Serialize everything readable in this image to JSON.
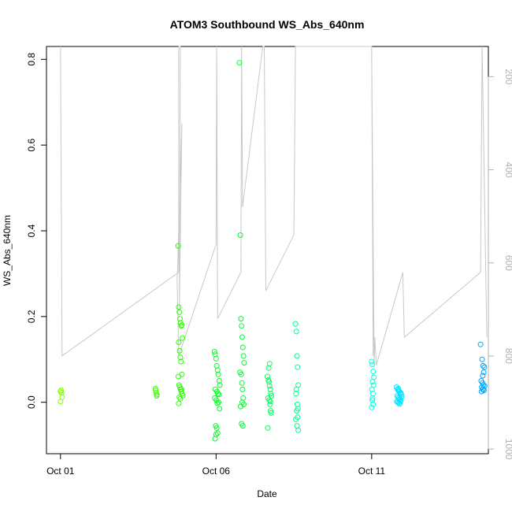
{
  "chart_data": {
    "type": "scatter",
    "title": "ATOM3 Southbound WS_Abs_640nm",
    "xlabel": "Date",
    "ylabel": "WS_Abs_640nm",
    "x_unit": "days since Oct 01",
    "xlim": [
      -0.45,
      13.75
    ],
    "ylim": [
      -0.12,
      0.83
    ],
    "x_ticks": [
      {
        "value": 0,
        "label": "Oct 01"
      },
      {
        "value": 5,
        "label": "Oct 06"
      },
      {
        "value": 10,
        "label": "Oct 11"
      }
    ],
    "y_ticks": [
      0.0,
      0.2,
      0.4,
      0.6,
      0.8
    ],
    "y_tick_labels": [
      "0.0",
      "0.2",
      "0.4",
      "0.6",
      "0.8"
    ],
    "y2_axis": {
      "lim": [
        1010,
        135
      ],
      "ticks": [
        200,
        400,
        600,
        800,
        1000
      ],
      "tick_labels": [
        "200",
        "400",
        "600",
        "800",
        "1000"
      ],
      "color": "#b0b0b0"
    },
    "point_clusters": [
      {
        "color": "#80ff00",
        "x": [
          0.0,
          0.02,
          0.05,
          0.0,
          0.03
        ],
        "y": [
          0.025,
          0.028,
          0.012,
          0.002,
          0.022
        ]
      },
      {
        "color": "#40ff00",
        "x": [
          3.05,
          3.07,
          3.09,
          3.1,
          3.06
        ],
        "y": [
          0.032,
          0.022,
          0.015,
          0.018,
          0.028
        ]
      },
      {
        "color": "#2aff00",
        "x": [
          3.78,
          3.8,
          3.82,
          3.84,
          3.86,
          3.88,
          3.9,
          3.92,
          3.8,
          3.83,
          3.85,
          3.87,
          3.9,
          3.79,
          3.81,
          3.84,
          3.86,
          3.88,
          3.91,
          3.93,
          3.82,
          3.85,
          3.89,
          3.8
        ],
        "y": [
          0.365,
          0.222,
          0.21,
          0.195,
          0.185,
          0.178,
          0.18,
          0.15,
          0.14,
          0.12,
          0.105,
          0.095,
          0.065,
          0.06,
          0.04,
          0.035,
          0.03,
          0.025,
          0.02,
          0.015,
          0.012,
          0.008,
          0.03,
          -0.003
        ]
      },
      {
        "color": "#00ff20",
        "x": [
          4.95,
          4.97,
          5.0,
          5.02,
          5.05,
          5.07,
          5.1,
          5.12,
          4.98,
          5.03,
          5.06,
          5.09,
          4.96,
          5.01,
          5.04,
          5.08,
          5.11,
          4.99,
          5.02,
          5.05,
          5.0,
          4.97
        ],
        "y": [
          0.118,
          0.112,
          0.102,
          0.085,
          0.075,
          0.065,
          0.05,
          0.04,
          0.03,
          0.025,
          0.02,
          0.018,
          0.01,
          0.005,
          -0.002,
          0.0,
          -0.015,
          -0.055,
          -0.06,
          -0.072,
          -0.075,
          -0.085
        ]
      },
      {
        "color": "#00ff30",
        "x": [
          5.75,
          5.78,
          5.8,
          5.82,
          5.84,
          5.86,
          5.88,
          5.9,
          5.77,
          5.81,
          5.83,
          5.85,
          5.87,
          5.89,
          5.79,
          5.82,
          5.86,
          5.84
        ],
        "y": [
          0.792,
          0.39,
          0.195,
          0.178,
          0.152,
          0.128,
          0.108,
          0.092,
          0.07,
          0.065,
          0.045,
          0.03,
          0.01,
          -0.005,
          -0.01,
          -0.05,
          -0.055,
          0.0
        ]
      },
      {
        "color": "#00ff60",
        "x": [
          6.65,
          6.68,
          6.7,
          6.72,
          6.74,
          6.76,
          6.78,
          6.67,
          6.71,
          6.73,
          6.75,
          6.77,
          6.69,
          6.72,
          6.74,
          6.66
        ],
        "y": [
          0.06,
          0.052,
          0.048,
          0.038,
          0.03,
          0.02,
          0.015,
          0.01,
          0.005,
          -0.005,
          -0.02,
          -0.025,
          0.08,
          0.09,
          0.002,
          -0.06
        ]
      },
      {
        "color": "#00ff90",
        "x": [
          7.55,
          7.58,
          7.6,
          7.62,
          7.64,
          7.57,
          7.61,
          7.63,
          7.59,
          7.62,
          7.56,
          7.6,
          7.64,
          7.58
        ],
        "y": [
          0.183,
          0.165,
          0.108,
          0.082,
          0.04,
          0.02,
          -0.005,
          -0.015,
          -0.02,
          -0.035,
          -0.04,
          -0.055,
          -0.065,
          0.03
        ]
      },
      {
        "color": "#00ffe0",
        "x": [
          10.0,
          10.02,
          10.05,
          10.07,
          10.03,
          10.06,
          10.01,
          10.04,
          10.02,
          10.05,
          10.0,
          10.03
        ],
        "y": [
          0.095,
          0.088,
          0.072,
          0.058,
          0.048,
          0.04,
          0.03,
          0.02,
          0.005,
          -0.005,
          -0.012,
          0.01
        ]
      },
      {
        "color": "#00e5ff",
        "x": [
          10.8,
          10.83,
          10.86,
          10.89,
          10.92,
          10.95,
          10.82,
          10.85,
          10.88,
          10.91,
          10.94,
          10.81,
          10.84,
          10.87,
          10.9,
          10.93,
          10.96,
          10.86,
          10.89,
          10.92
        ],
        "y": [
          0.035,
          0.03,
          0.028,
          0.025,
          0.02,
          0.018,
          0.015,
          0.012,
          0.01,
          0.008,
          0.005,
          0.002,
          0.0,
          -0.002,
          -0.004,
          0.022,
          0.013,
          0.032,
          0.006,
          0.001
        ]
      },
      {
        "color": "#00a6ff",
        "x": [
          13.5,
          13.55,
          13.58,
          13.62,
          13.6,
          13.57,
          13.52,
          13.56,
          13.59,
          13.63,
          13.54,
          13.58,
          13.61,
          13.53,
          13.57
        ],
        "y": [
          0.135,
          0.1,
          0.085,
          0.082,
          0.07,
          0.062,
          0.05,
          0.045,
          0.04,
          0.038,
          0.035,
          0.03,
          0.028,
          0.025,
          0.03
        ]
      }
    ],
    "pressure_track": {
      "color": "#c8c8c8",
      "x": [
        0.0,
        0.0,
        0.05,
        3.8,
        3.8,
        3.85,
        3.82,
        3.9,
        3.75,
        3.8,
        5.0,
        5.02,
        5.05,
        5.8,
        5.82,
        5.85,
        6.5,
        6.55,
        6.6,
        7.5,
        7.55,
        10.0,
        10.05,
        10.0,
        10.08,
        10.1,
        10.15,
        11.0,
        11.05,
        13.5,
        13.55,
        13.7
      ],
      "y": [
        0,
        0,
        800,
        620,
        0,
        0,
        700,
        300,
        640,
        800,
        560,
        0,
        720,
        620,
        0,
        480,
        0,
        0,
        660,
        540,
        0,
        0,
        800,
        0,
        820,
        760,
        820,
        620,
        760,
        620,
        0,
        760
      ]
    }
  }
}
